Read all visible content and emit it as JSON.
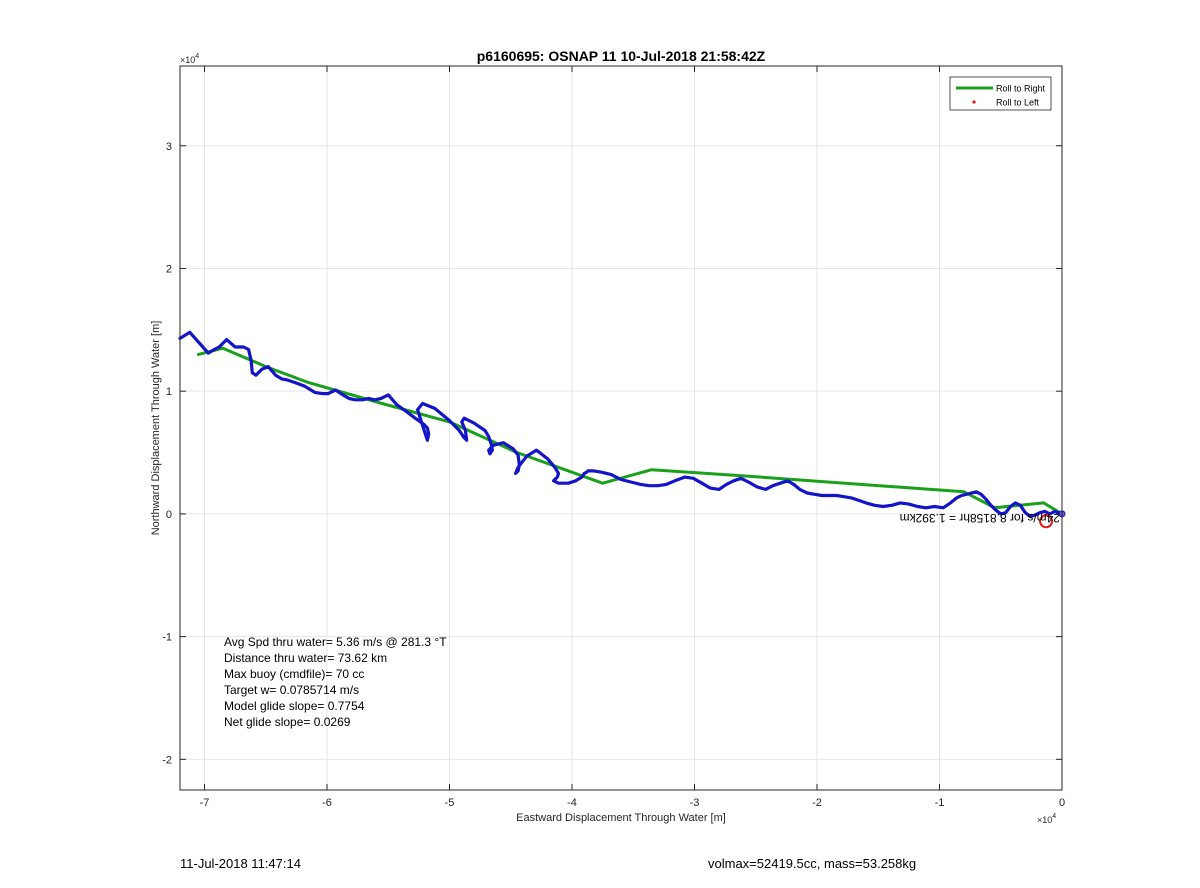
{
  "chart_data": {
    "type": "line",
    "title": "p6160695: OSNAP 11 10-Jul-2018 21:58:42Z",
    "xlabel": "Eastward Displacement Through Water [m]",
    "ylabel": "Northward Displacement Through Water [m]",
    "x_exponent_label": "×10",
    "x_exponent_power": "4",
    "y_exponent_label": "×10",
    "y_exponent_power": "4",
    "xlim": [
      -72000,
      0
    ],
    "ylim": [
      -22500,
      36500
    ],
    "x_ticks": [
      -70000,
      -60000,
      -50000,
      -40000,
      -30000,
      -20000,
      -10000,
      0
    ],
    "x_tick_labels": [
      "-7",
      "-6",
      "-5",
      "-4",
      "-3",
      "-2",
      "-1",
      "0"
    ],
    "y_ticks": [
      -20000,
      -10000,
      0,
      10000,
      20000,
      30000
    ],
    "y_tick_labels": [
      "-2",
      "-1",
      "0",
      "1",
      "2",
      "3"
    ],
    "grid": true,
    "legend_position": "top-right",
    "legend": [
      {
        "label": "Roll to Right",
        "color": "#1aa01a",
        "marker": "line"
      },
      {
        "label": "Roll to Left",
        "color": "#e31a1a",
        "marker": "dot"
      }
    ],
    "series": [
      {
        "name": "Roll to Right",
        "color": "#1aa01a",
        "x": [
          -70500,
          -68500,
          -65000,
          -61500,
          -55500,
          -50000,
          -44500,
          -37500,
          -33500,
          -26000,
          -8000,
          -5500,
          -1500,
          0
        ],
        "y": [
          13000,
          13500,
          12000,
          10700,
          9000,
          7500,
          5000,
          2500,
          3600,
          3100,
          1800,
          500,
          900,
          0
        ]
      },
      {
        "name": "",
        "color": "#1414c8",
        "x": [
          -72000,
          -71200,
          -70400,
          -69700,
          -69200,
          -68800,
          -68200,
          -67500,
          -66800,
          -66400,
          -66200,
          -66100,
          -65800,
          -65300,
          -64800,
          -64200,
          -63700,
          -63200,
          -62600,
          -61800,
          -61000,
          -60400,
          -59900,
          -59300,
          -58700,
          -58200,
          -57700,
          -57100,
          -56600,
          -56100,
          -55600,
          -55000,
          -54300,
          -53600,
          -52800,
          -52100,
          -51800,
          -51700,
          -51800,
          -52200,
          -52600,
          -52200,
          -51200,
          -50000,
          -49200,
          -48800,
          -48600,
          -48700,
          -49000,
          -48800,
          -48000,
          -47100,
          -46800,
          -46600,
          -46500,
          -46700,
          -46800,
          -46400,
          -45600,
          -44800,
          -44400,
          -44300,
          -44400,
          -44600,
          -44400,
          -43700,
          -42900,
          -42000,
          -41400,
          -41100,
          -41200,
          -41500,
          -41100,
          -40300,
          -39700,
          -39200,
          -39000,
          -38800,
          -38700,
          -38600,
          -38200,
          -37600,
          -36800,
          -36000,
          -35200,
          -34400,
          -33700,
          -33000,
          -32300,
          -31600,
          -30800,
          -30100,
          -29400,
          -28700,
          -28000,
          -27400,
          -26800,
          -26200,
          -25600,
          -24900,
          -24200,
          -23600,
          -23000,
          -22400,
          -21900,
          -21400,
          -20800,
          -20200,
          -19600,
          -19000,
          -18400,
          -17800,
          -17200,
          -16600,
          -16000,
          -15300,
          -14600,
          -13900,
          -13200,
          -12500,
          -11800,
          -11100,
          -10400,
          -9700,
          -9100,
          -8600,
          -8200,
          -7800,
          -7400,
          -7000,
          -6600,
          -6200,
          -5800,
          -5400,
          -5000,
          -4600,
          -4200,
          -3800,
          -3400,
          -3000,
          -2600,
          -2200,
          -1800,
          -1400,
          -1000,
          -600,
          -300,
          0
        ],
        "y": [
          14300,
          14800,
          13900,
          13100,
          13400,
          13600,
          14200,
          13600,
          13600,
          13400,
          12500,
          11500,
          11300,
          11800,
          12000,
          11300,
          11000,
          10900,
          10700,
          10400,
          9900,
          9800,
          9800,
          10100,
          9700,
          9400,
          9300,
          9300,
          9400,
          9300,
          9400,
          9700,
          8900,
          8400,
          7800,
          7300,
          7000,
          6500,
          6000,
          7200,
          8500,
          9000,
          8600,
          7600,
          6800,
          6200,
          6000,
          6800,
          7500,
          7800,
          7400,
          6800,
          6300,
          5700,
          5200,
          4900,
          5200,
          5600,
          5800,
          5300,
          4800,
          4000,
          3500,
          3300,
          3800,
          4700,
          5200,
          4500,
          3800,
          3300,
          3000,
          2700,
          2500,
          2500,
          2700,
          3000,
          3300,
          3400,
          3500,
          3500,
          3500,
          3400,
          3200,
          2800,
          2600,
          2400,
          2300,
          2300,
          2400,
          2700,
          3000,
          2900,
          2500,
          2100,
          2000,
          2400,
          2700,
          2900,
          2600,
          2200,
          2000,
          2300,
          2500,
          2700,
          2400,
          2000,
          1700,
          1600,
          1500,
          1500,
          1500,
          1400,
          1300,
          1100,
          900,
          700,
          600,
          700,
          900,
          800,
          600,
          500,
          600,
          500,
          900,
          1300,
          1500,
          1600,
          1700,
          1800,
          1600,
          1200,
          700,
          300,
          0,
          100,
          600,
          900,
          700,
          100,
          -200,
          -100,
          100,
          200,
          0,
          200,
          100,
          0
        ]
      }
    ],
    "annotations": [
      "Avg Spd thru water=  5.36 m/s @ 281.3 °T",
      "Distance thru water= 73.62 km",
      "Max buoy (cmdfile)= 70 cc",
      "Target w= 0.0785714 m/s",
      "Model glide slope= 0.7754",
      "Net glide slope= 0.0269"
    ],
    "end_marker": {
      "x": -1300,
      "y": -600,
      "color": "#e31a1a"
    },
    "mirrored_annotation": "24m/s for 8.8158hr = 1.392km"
  },
  "footer": {
    "left": "11-Jul-2018 11:47:14",
    "right": "volmax=52419.5cc, mass=53.258kg"
  }
}
